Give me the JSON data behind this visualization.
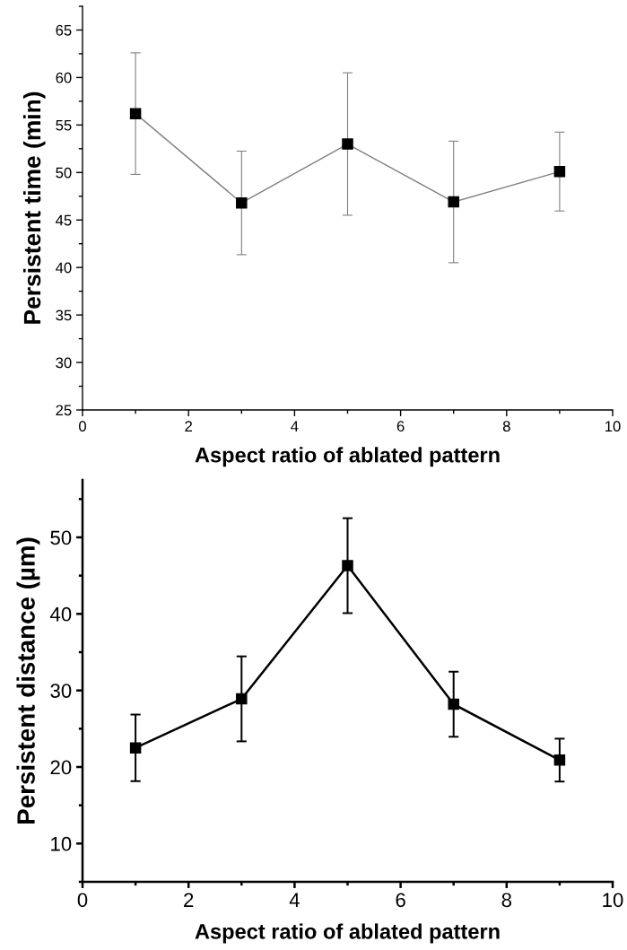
{
  "chart_data": [
    {
      "type": "line",
      "xlabel": "Aspect ratio of ablated pattern",
      "ylabel": "Persistent time (min)",
      "x": [
        1,
        3,
        5,
        7,
        9
      ],
      "series": [
        {
          "color": "#808080",
          "values": [
            56.2,
            46.8,
            53.0,
            46.9,
            50.1
          ],
          "errors": [
            6.4,
            5.45,
            7.5,
            6.4,
            4.15
          ]
        }
      ],
      "marker": "square",
      "line_style": "solid",
      "xlim": [
        0,
        10
      ],
      "xticks": [
        0,
        2,
        4,
        6,
        8,
        10
      ],
      "ylim": [
        25,
        67.5
      ],
      "yticks": [
        25,
        30,
        35,
        40,
        45,
        50,
        55,
        60,
        65
      ],
      "grid": false,
      "legend": false
    },
    {
      "type": "line",
      "xlabel": "Aspect ratio of ablated pattern",
      "ylabel": "Persistent distance (µm)",
      "x": [
        1,
        3,
        5,
        7,
        9
      ],
      "series": [
        {
          "color": "#000000",
          "values": [
            22.5,
            28.9,
            46.3,
            28.2,
            20.9
          ],
          "errors": [
            4.35,
            5.55,
            6.2,
            4.25,
            2.8
          ]
        }
      ],
      "marker": "square",
      "line_style": "solid",
      "xlim": [
        0,
        10
      ],
      "xticks": [
        0,
        2,
        4,
        6,
        8,
        10
      ],
      "ylim": [
        5,
        57.5
      ],
      "yticks": [
        10,
        20,
        30,
        40,
        50
      ],
      "grid": false,
      "legend": false
    }
  ]
}
